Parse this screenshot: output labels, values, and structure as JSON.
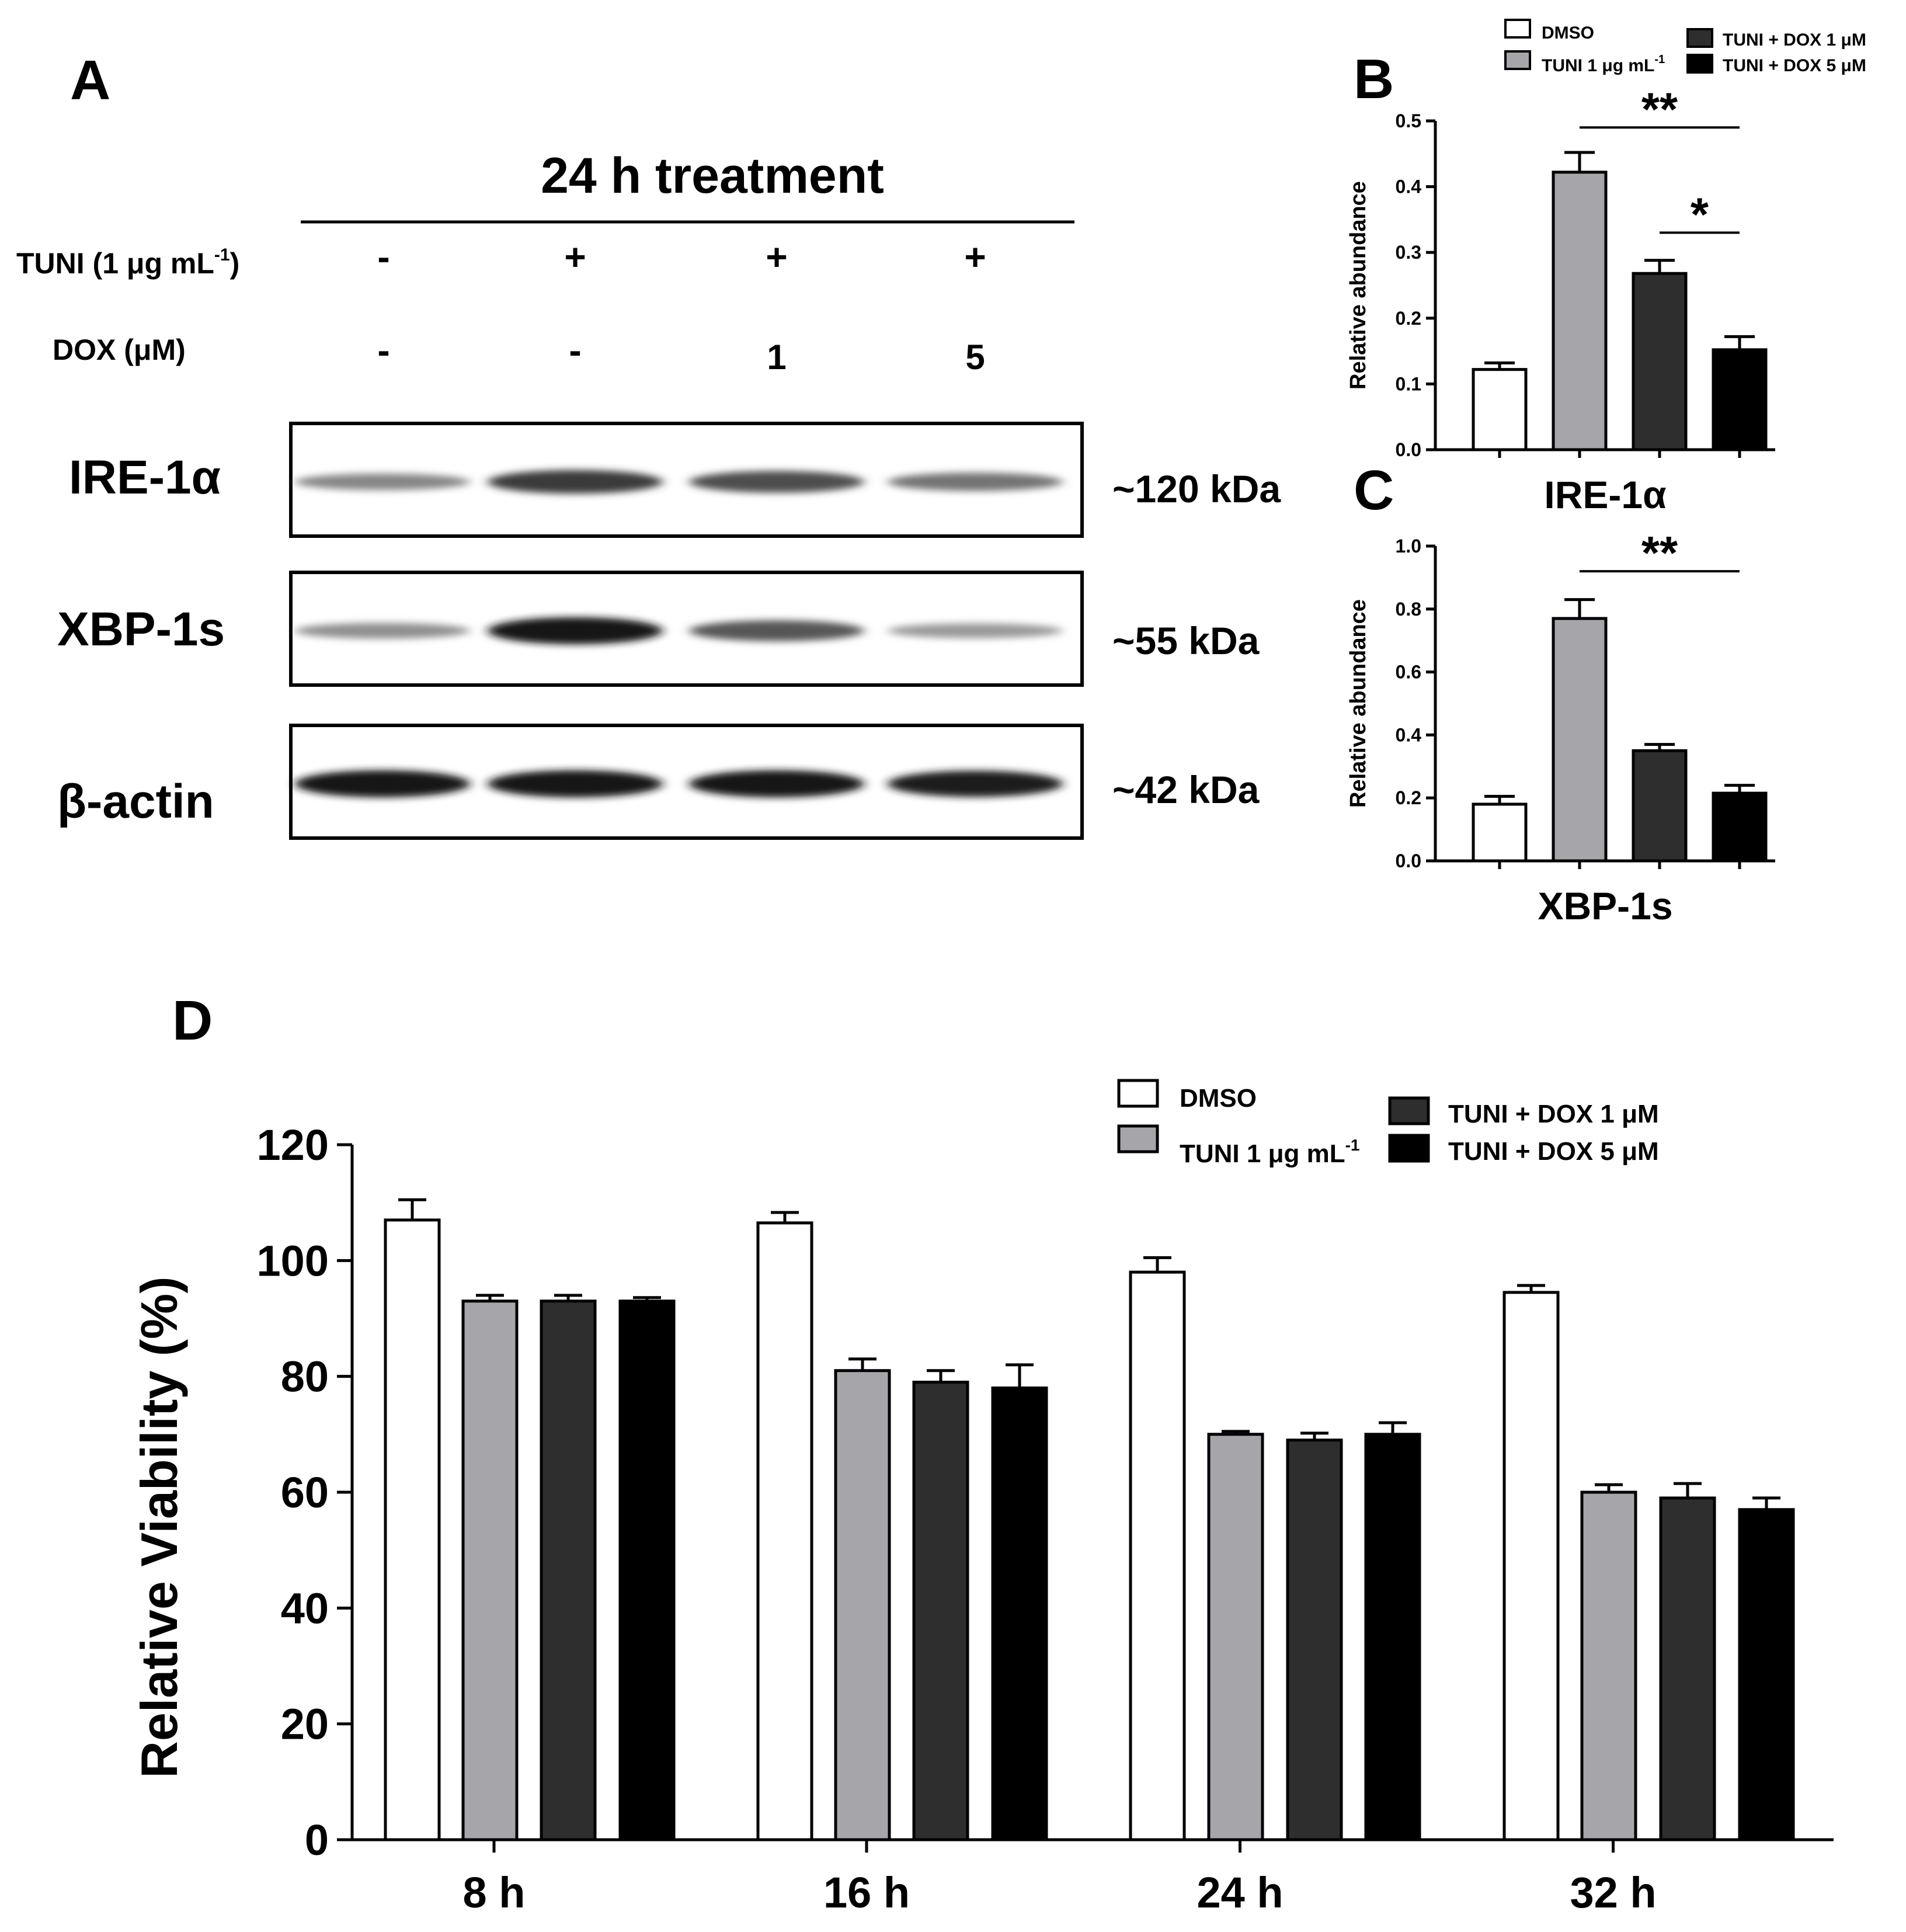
{
  "panel_labels": {
    "A": "A",
    "B": "B",
    "C": "C",
    "D": "D"
  },
  "blot": {
    "title": "24 h treatment",
    "row_labels": [
      {
        "label": "TUNI (1 μg mL",
        "sup": "-1",
        "close": ")",
        "values": [
          "-",
          "+",
          "+",
          "+"
        ]
      },
      {
        "label": "DOX (μM)",
        "values": [
          "-",
          "-",
          "1",
          "5"
        ]
      }
    ],
    "bands": [
      {
        "name": "IRE-1α",
        "size": "~120 kDa",
        "intensity": [
          0.35,
          0.75,
          0.65,
          0.45
        ]
      },
      {
        "name": "XBP-1s",
        "size": "~55 kDa",
        "intensity": [
          0.3,
          0.95,
          0.6,
          0.25
        ]
      },
      {
        "name": "β-actin",
        "size": "~42 kDa",
        "intensity": [
          0.95,
          0.95,
          0.95,
          0.9
        ]
      }
    ]
  },
  "legend": {
    "dmso": "DMSO",
    "tuni_main": "TUNI 1 μg mL",
    "tuni_sup": "-1",
    "dox1": "TUNI + DOX 1 μM",
    "dox5": "TUNI + DOX 5 μM"
  },
  "colors": {
    "DMSO": "#ffffff",
    "TUNI": "#a6a5aa",
    "DOX1": "#2e2e2e",
    "DOX5": "#000000"
  },
  "chart_data": [
    {
      "id": "B",
      "type": "bar",
      "xlabel": "IRE-1α",
      "ylabel": "Relative abundance",
      "ylim": [
        0,
        0.5
      ],
      "yticks": [
        "0.0",
        "0.1",
        "0.2",
        "0.3",
        "0.4",
        "0.5"
      ],
      "series": [
        {
          "name": "DMSO",
          "value": 0.122,
          "error": 0.01
        },
        {
          "name": "TUNI 1 μg mL-1",
          "value": 0.422,
          "error": 0.03
        },
        {
          "name": "TUNI + DOX 1 μM",
          "value": 0.268,
          "error": 0.02
        },
        {
          "name": "TUNI + DOX 5 μM",
          "value": 0.152,
          "error": 0.02
        }
      ],
      "significance": [
        {
          "from": 1,
          "to": 3,
          "label": "**",
          "y": 0.49
        },
        {
          "from": 2,
          "to": 3,
          "label": "*",
          "y": 0.33
        }
      ]
    },
    {
      "id": "C",
      "type": "bar",
      "xlabel": "XBP-1s",
      "ylabel": "Relative abundance",
      "ylim": [
        0,
        1.0
      ],
      "yticks": [
        "0.0",
        "0.2",
        "0.4",
        "0.6",
        "0.8",
        "1.0"
      ],
      "series": [
        {
          "name": "DMSO",
          "value": 0.18,
          "error": 0.025
        },
        {
          "name": "TUNI 1 μg mL-1",
          "value": 0.77,
          "error": 0.06
        },
        {
          "name": "TUNI + DOX 1 μM",
          "value": 0.35,
          "error": 0.02
        },
        {
          "name": "TUNI + DOX 5 μM",
          "value": 0.215,
          "error": 0.025
        }
      ],
      "significance": [
        {
          "from": 1,
          "to": 3,
          "label": "**",
          "y": 0.92
        }
      ]
    },
    {
      "id": "D",
      "type": "bar",
      "ylabel": "Relative Viability (%)",
      "ylim": [
        0,
        120
      ],
      "yticks": [
        "0",
        "20",
        "40",
        "60",
        "80",
        "100",
        "120"
      ],
      "categories": [
        "8 h",
        "16 h",
        "24 h",
        "32 h"
      ],
      "series": [
        {
          "name": "DMSO",
          "values": [
            107,
            106.5,
            98,
            94.5
          ],
          "errors": [
            3.5,
            1.8,
            2.5,
            1.2
          ]
        },
        {
          "name": "TUNI 1 μg mL-1",
          "values": [
            93,
            81,
            70,
            60
          ],
          "errors": [
            1,
            2,
            0.5,
            1.3
          ]
        },
        {
          "name": "TUNI + DOX 1 μM",
          "values": [
            93,
            79,
            69,
            59
          ],
          "errors": [
            1,
            2,
            1.2,
            2.5
          ]
        },
        {
          "name": "TUNI + DOX 5 μM",
          "values": [
            93,
            78,
            70,
            57
          ],
          "errors": [
            0.6,
            4,
            2,
            2
          ]
        }
      ]
    }
  ]
}
